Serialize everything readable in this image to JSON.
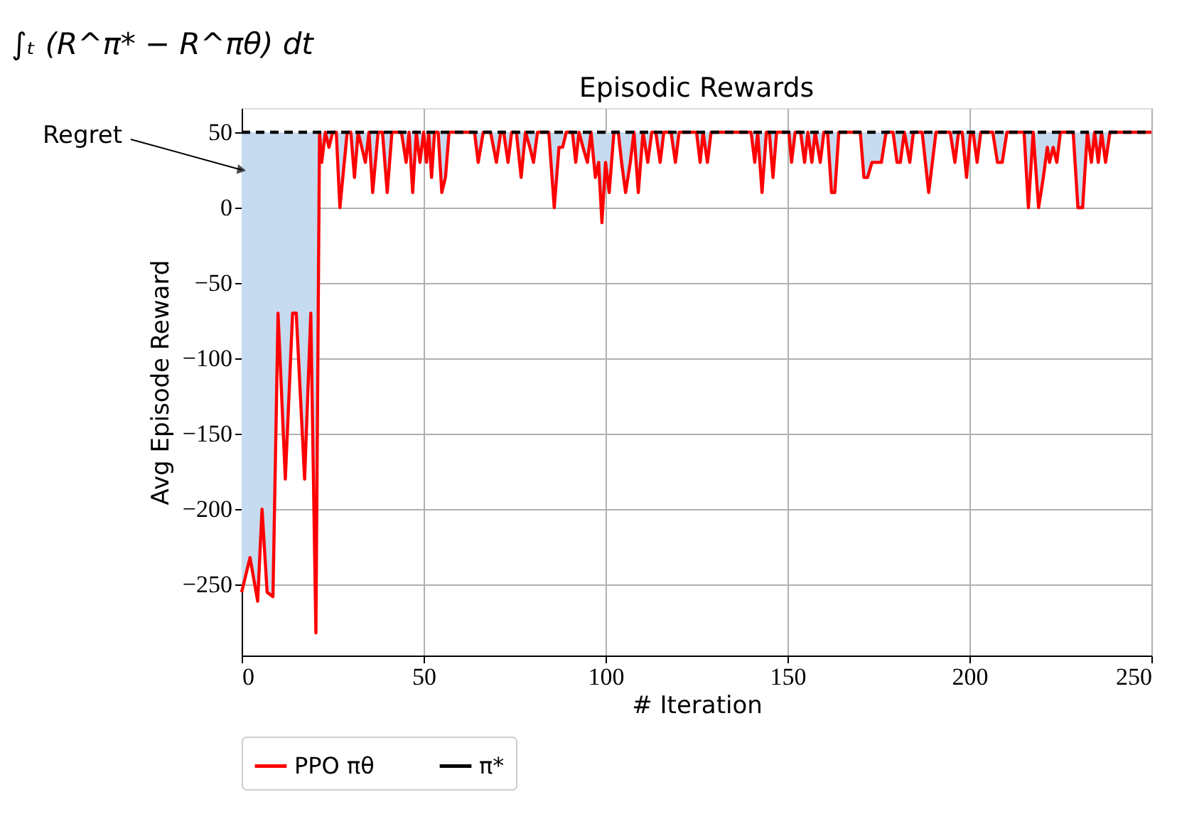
{
  "chart_data": {
    "type": "line",
    "title": "Episodic Rewards",
    "xlabel": "# Iteration",
    "ylabel": "Avg Episode Reward",
    "annotations": [
      "∫ₜ (R^π* − R^πθ) dt",
      {
        "text": "Regret",
        "x": 0,
        "y": 25
      }
    ],
    "xlim": [
      0,
      250
    ],
    "xticks": [
      0,
      50,
      100,
      150,
      200,
      250
    ],
    "ylim": [
      -297,
      66
    ],
    "yticks": [
      -250,
      -200,
      -150,
      -100,
      -50,
      0,
      50
    ],
    "grid": true,
    "legend": "bottom",
    "series": [
      {
        "name": "PPO πθ",
        "color": "#ff0000",
        "line_style": "solid",
        "x": [
          0,
          2.3,
          4.4,
          5.6,
          7,
          8.6,
          10,
          12,
          14,
          15,
          17.3,
          19,
          20.4,
          21.4,
          22,
          23,
          24,
          25,
          26,
          27,
          29,
          30,
          31,
          32,
          34,
          35,
          36,
          37.5,
          38.7,
          40,
          41.3,
          43.9,
          45.2,
          46,
          47,
          48,
          49,
          50,
          50.8,
          51.4,
          52.2,
          53,
          54,
          55,
          56,
          57,
          64,
          65,
          66.4,
          68.4,
          70,
          71.2,
          72,
          73.2,
          74.2,
          75.5,
          76.8,
          78,
          79.2,
          80.2,
          81.3,
          84.4,
          85.9,
          87.2,
          88.2,
          89.2,
          90.9,
          91.8,
          92.7,
          93.8,
          95,
          96,
          97.2,
          98.1,
          99,
          100,
          101,
          102.3,
          103.5,
          104.4,
          105.5,
          106.8,
          107.8,
          109,
          110.3,
          111.6,
          112.7,
          113.8,
          115,
          116,
          118,
          119.2,
          120.2,
          125,
          126,
          126.8,
          128,
          129,
          140,
          141,
          141.8,
          143,
          144.2,
          145,
          146,
          147,
          150.4,
          151.1,
          152.1,
          153.6,
          154.7,
          155.6,
          156.7,
          157.6,
          159,
          160,
          161,
          162.1,
          163,
          164.1,
          170,
          171,
          172,
          173.2,
          175.8,
          177.1,
          179,
          180.1,
          181,
          182.1,
          183.6,
          184.6,
          187,
          188.8,
          190.8,
          194.7,
          196,
          197,
          198,
          199.2,
          200.3,
          201,
          202.1,
          203.1,
          206.4,
          207.7,
          209,
          210.3,
          215,
          216.2,
          217.5,
          219,
          220.3,
          221.4,
          222,
          223,
          224,
          225,
          228.5,
          229.8,
          231.1,
          232.4,
          233.5,
          234.4,
          235.4,
          236.3,
          237.4,
          238.6,
          250
        ],
        "values": [
          -255,
          -232,
          -261,
          -200,
          -255,
          -258,
          -70,
          -180,
          -70,
          -70,
          -180,
          -70,
          -282,
          50,
          30,
          50,
          40,
          50,
          50,
          0,
          50,
          50,
          20,
          50,
          30,
          50,
          10,
          50,
          50,
          10,
          50,
          50,
          30,
          50,
          10,
          50,
          30,
          50,
          30,
          50,
          20,
          50,
          50,
          10,
          20,
          50,
          50,
          30,
          50,
          50,
          30,
          50,
          50,
          30,
          50,
          50,
          20,
          50,
          40,
          30,
          50,
          50,
          0,
          40,
          40,
          50,
          50,
          30,
          50,
          40,
          30,
          50,
          20,
          30,
          -10,
          30,
          10,
          50,
          50,
          30,
          10,
          30,
          50,
          10,
          50,
          30,
          50,
          50,
          30,
          50,
          50,
          30,
          50,
          50,
          30,
          50,
          30,
          50,
          50,
          30,
          50,
          10,
          50,
          50,
          20,
          50,
          50,
          30,
          50,
          50,
          30,
          50,
          30,
          50,
          30,
          50,
          50,
          10,
          10,
          50,
          50,
          20,
          20,
          30,
          30,
          50,
          50,
          30,
          30,
          50,
          30,
          50,
          50,
          10,
          50,
          50,
          30,
          50,
          50,
          20,
          50,
          50,
          30,
          50,
          50,
          30,
          30,
          50,
          50,
          0,
          50,
          0,
          20,
          40,
          30,
          40,
          30,
          50,
          50,
          0,
          0,
          50,
          30,
          50,
          30,
          50,
          30,
          50,
          50
        ],
        "lower": [
          -255,
          -232,
          -261,
          -200,
          -255,
          -258,
          -70,
          -180,
          -70,
          -70,
          -180,
          -70,
          -282,
          50,
          30,
          50,
          40,
          50,
          50,
          0,
          50,
          50,
          20,
          50,
          30,
          50,
          10,
          50,
          50,
          10,
          50,
          50,
          30,
          50,
          10,
          50,
          30,
          50,
          30,
          50,
          20,
          50,
          50,
          10,
          20,
          50,
          50,
          30,
          50,
          50,
          30,
          50,
          50,
          30,
          50,
          50,
          20,
          50,
          40,
          30,
          50,
          50,
          0,
          40,
          40,
          50,
          50,
          30,
          50,
          40,
          30,
          50,
          20,
          30,
          -10,
          30,
          10,
          50,
          50,
          30,
          10,
          30,
          50,
          10,
          50,
          30,
          50,
          50,
          30,
          50,
          50,
          30,
          50,
          50,
          30,
          50,
          30,
          50,
          50,
          30,
          50,
          10,
          50,
          50,
          20,
          50,
          50,
          30,
          50,
          50,
          30,
          50,
          30,
          50,
          30,
          50,
          50,
          10,
          10,
          50,
          50,
          20,
          20,
          30,
          30,
          50,
          50,
          30,
          30,
          50,
          30,
          50,
          50,
          10,
          50,
          50,
          30,
          50,
          50,
          20,
          50,
          50,
          30,
          50,
          50,
          30,
          30,
          50,
          50,
          0,
          50,
          0,
          20,
          40,
          30,
          40,
          30,
          50,
          50,
          0,
          0,
          50,
          30,
          50,
          30,
          50,
          30,
          50,
          50
        ],
        "upper": [
          50,
          50,
          50,
          50,
          50,
          50,
          50,
          50,
          50,
          50,
          50,
          50,
          50,
          50,
          50,
          50,
          50,
          50,
          50,
          50,
          50,
          50,
          50,
          50,
          50,
          50,
          50,
          50,
          50,
          50,
          50,
          50,
          50,
          50,
          50,
          50,
          50,
          50,
          50,
          50,
          50,
          50,
          50,
          50,
          50,
          50,
          50,
          50,
          50,
          50,
          50,
          50,
          50,
          50,
          50,
          50,
          50,
          50,
          50,
          50,
          50,
          50,
          50,
          50,
          50,
          50,
          50,
          50,
          50,
          50,
          50,
          50,
          50,
          50,
          50,
          50,
          50,
          50,
          50,
          50,
          50,
          50,
          50,
          50,
          50,
          50,
          50,
          50,
          50,
          50,
          50,
          50,
          50,
          50,
          50,
          50,
          50,
          50,
          50,
          50,
          50,
          50,
          50,
          50,
          50,
          50,
          50,
          50,
          50,
          50,
          50,
          50,
          50,
          50,
          50,
          50,
          50,
          50,
          50,
          50,
          50,
          50,
          50,
          50,
          50,
          50,
          50,
          50,
          50,
          50,
          50,
          50,
          50,
          50,
          50,
          50,
          50,
          50,
          50,
          50,
          50,
          50,
          50,
          50,
          50,
          50,
          50,
          50,
          50,
          50,
          50,
          50,
          50,
          50,
          50,
          50,
          50,
          50,
          50,
          50,
          50,
          50,
          50,
          50,
          50,
          50,
          50,
          50,
          50
        ]
      },
      {
        "name": "π*",
        "color": "#000000",
        "line_style": "dashed",
        "x": [
          0,
          250
        ],
        "values": [
          50,
          50
        ]
      }
    ]
  }
}
